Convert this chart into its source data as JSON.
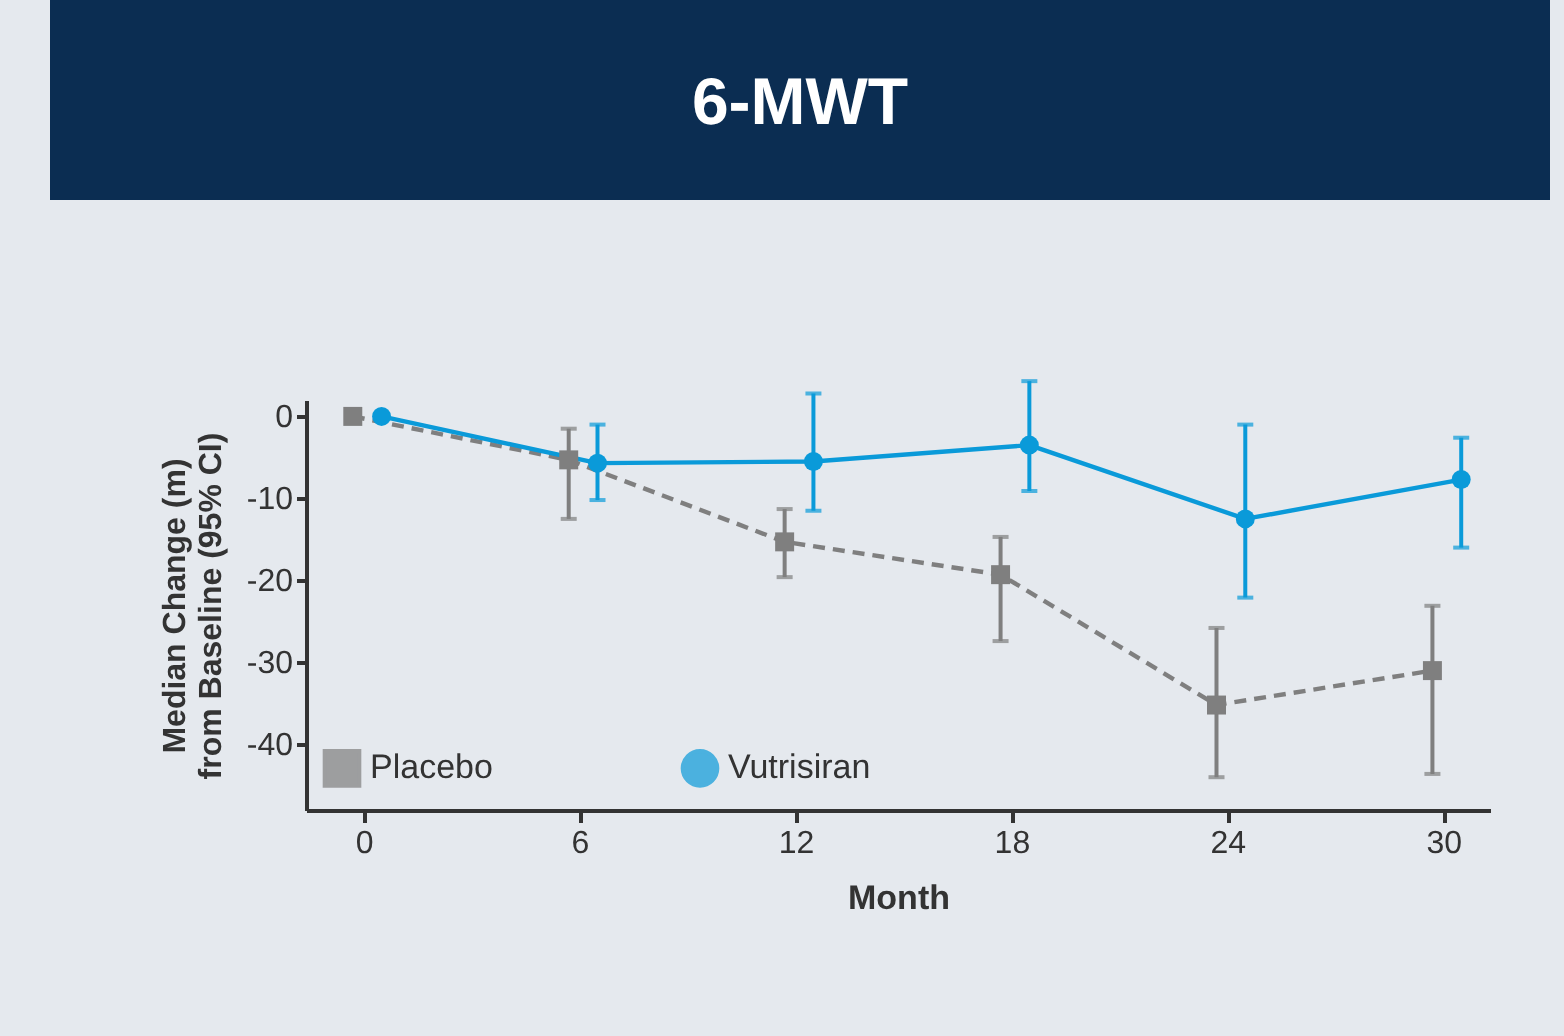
{
  "chart_data": {
    "type": "line",
    "title": "6-MWT",
    "xlabel": "Month",
    "ylabel": "Median Change (m) from Baseline (95% CI)",
    "xlim": [
      -1.6,
      31.3
    ],
    "xticks": [
      0,
      6,
      12,
      18,
      24,
      30
    ],
    "ylim": [
      -48,
      2
    ],
    "yticks": [
      0,
      -10,
      -20,
      -30,
      -40
    ],
    "grid": false,
    "legend": "bottom left",
    "series": [
      {
        "name": "Placebo",
        "color": "#7f7f7f",
        "marker": "square",
        "line_style": "dashed",
        "x": [
          -0.3,
          5.7,
          11.7,
          17.7,
          23.7,
          29.7
        ],
        "values": [
          0,
          -5.3,
          -15.3,
          -19.3,
          -35.2,
          -31
        ],
        "errors": [
          null,
          [
            -12.5,
            -1.5
          ],
          [
            -19.6,
            -11.3
          ],
          [
            -27.4,
            -14.7
          ],
          [
            -44,
            -25.8
          ],
          [
            -43.6,
            -23.1
          ]
        ]
      },
      {
        "name": "Vutrisiran",
        "color": "#0a9ad9",
        "marker": "circle",
        "line_style": "solid",
        "x": [
          0.5,
          6.5,
          12.5,
          18.5,
          24.5,
          30.5
        ],
        "values": [
          0,
          -5.7,
          -5.5,
          -3.5,
          -12.5,
          -7.7
        ],
        "errors": [
          null,
          [
            -10.2,
            -1
          ],
          [
            -11.5,
            2.8
          ],
          [
            -9.1,
            4.3
          ],
          [
            -22.1,
            -1
          ],
          [
            -16,
            -2.6
          ]
        ]
      }
    ]
  }
}
